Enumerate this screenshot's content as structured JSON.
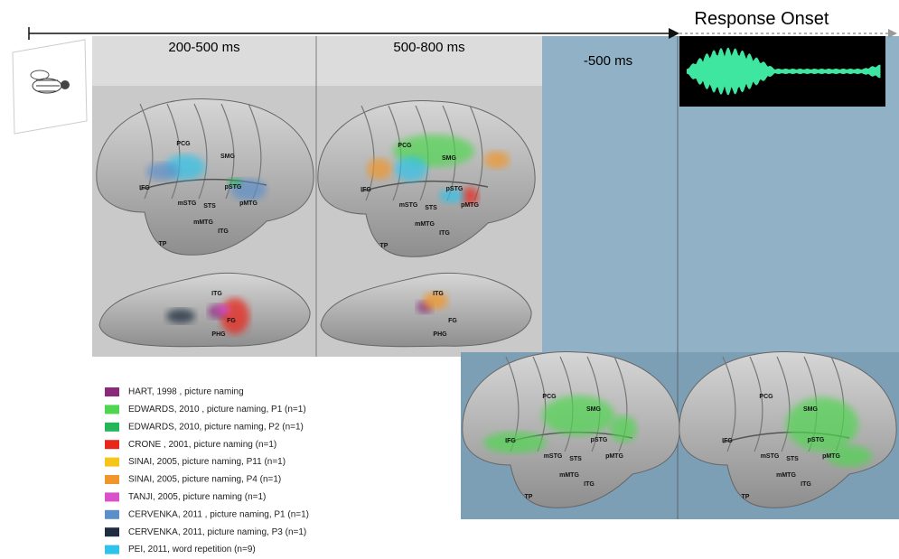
{
  "timeline": {
    "windows": [
      "200-500 ms",
      "500-800 ms",
      "-500 ms"
    ],
    "response_onset": "Response Onset"
  },
  "legend": [
    {
      "label": "HART, 1998 , picture naming",
      "color": "#8b2a7d"
    },
    {
      "label": "EDWARDS, 2010 , picture naming,  P1 (n=1)",
      "color": "#4fd64f"
    },
    {
      "label": "EDWARDS, 2010,   picture naming, P2 (n=1)",
      "color": "#22b55a"
    },
    {
      "label": "CRONE , 2001, picture naming (n=1)",
      "color": "#e8271a"
    },
    {
      "label": "SINAI, 2005, picture naming, P11 (n=1)",
      "color": "#f5c518"
    },
    {
      "label": "SINAI, 2005, picture naming, P4 (n=1)",
      "color": "#f0962a"
    },
    {
      "label": "TANJI, 2005, picture naming (n=1)",
      "color": "#d94fcc"
    },
    {
      "label": "CERVENKA, 2011 , picture naming, P1 (n=1)",
      "color": "#5b8fc9"
    },
    {
      "label": "CERVENKA, 2011, picture naming, P3 (n=1)",
      "color": "#1e2d40"
    },
    {
      "label": "PEI, 2011, word repetition (n=9)",
      "color": "#2fc3ea"
    }
  ],
  "lateral_brains": [
    {
      "labels": [
        "PCG",
        "SMG",
        "IFG",
        "pSTG",
        "mSTG",
        "STS",
        "pMTG",
        "mMTG",
        "ITG",
        "TP"
      ]
    },
    {
      "labels": [
        "PCG",
        "SMG",
        "IFG",
        "pSTG",
        "mSTG",
        "STS",
        "pMTG",
        "mMTG",
        "ITG",
        "TP"
      ]
    },
    {
      "labels": [
        "PCG",
        "SMG",
        "IFG",
        "pSTG",
        "mSTG",
        "STS",
        "pMTG",
        "mMTG",
        "ITG",
        "TP"
      ]
    },
    {
      "labels": [
        "PCG",
        "SMG",
        "IFG",
        "pSTG",
        "mSTG",
        "STS",
        "pMTG",
        "mMTG",
        "ITG",
        "TP"
      ]
    }
  ],
  "ventral_brains": [
    {
      "labels": [
        "ITG",
        "FG",
        "PHG"
      ]
    },
    {
      "labels": [
        "ITG",
        "FG",
        "PHG"
      ]
    }
  ]
}
